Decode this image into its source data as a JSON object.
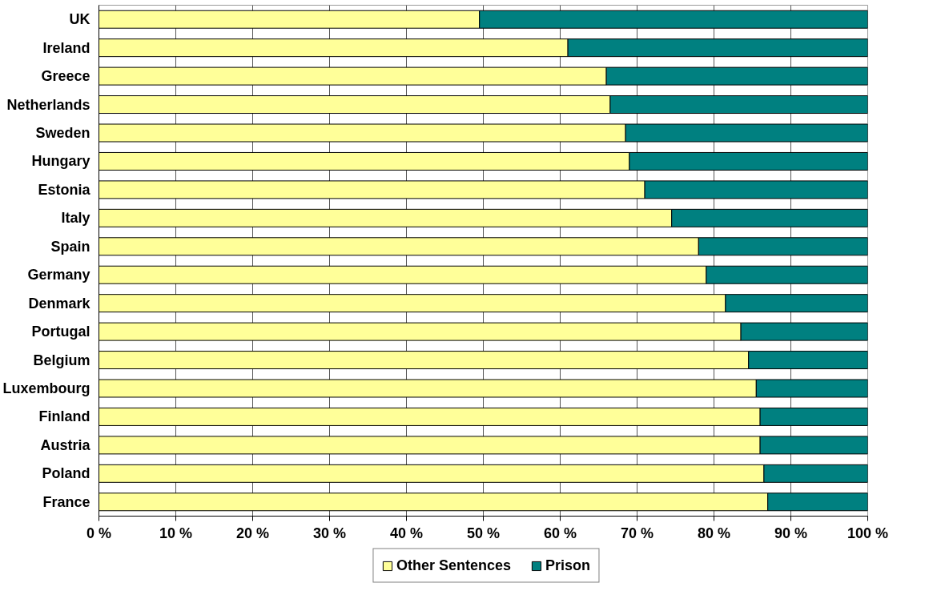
{
  "chart_data": {
    "type": "bar",
    "orientation": "horizontal",
    "stacked": true,
    "categories": [
      "UK",
      "Ireland",
      "Greece",
      "Netherlands",
      "Sweden",
      "Hungary",
      "Estonia",
      "Italy",
      "Spain",
      "Germany",
      "Denmark",
      "Portugal",
      "Belgium",
      "Luxembourg",
      "Finland",
      "Austria",
      "Poland",
      "France"
    ],
    "series": [
      {
        "name": "Other Sentences",
        "color": "#ffff99",
        "values": [
          49.5,
          61,
          66,
          66.5,
          68.5,
          69,
          71,
          74.5,
          78,
          79,
          81.5,
          83.5,
          84.5,
          85.5,
          86,
          86,
          86.5,
          87
        ]
      },
      {
        "name": "Prison",
        "color": "#008080",
        "values": [
          50.5,
          39,
          34,
          33.5,
          31.5,
          31,
          29,
          25.5,
          22,
          21,
          18.5,
          16.5,
          15.5,
          14.5,
          14,
          14,
          13.5,
          13
        ]
      }
    ],
    "xlim": [
      0,
      100
    ],
    "xticks": [
      {
        "value": 0,
        "label": "0 %"
      },
      {
        "value": 10,
        "label": "10 %"
      },
      {
        "value": 20,
        "label": "20 %"
      },
      {
        "value": 30,
        "label": "30 %"
      },
      {
        "value": 40,
        "label": "40 %"
      },
      {
        "value": 50,
        "label": "50 %"
      },
      {
        "value": 60,
        "label": "60 %"
      },
      {
        "value": 70,
        "label": "70 %"
      },
      {
        "value": 80,
        "label": "80 %"
      },
      {
        "value": 90,
        "label": "90 %"
      },
      {
        "value": 100,
        "label": "100 %"
      }
    ],
    "grid": "x",
    "legend": "bottom"
  }
}
